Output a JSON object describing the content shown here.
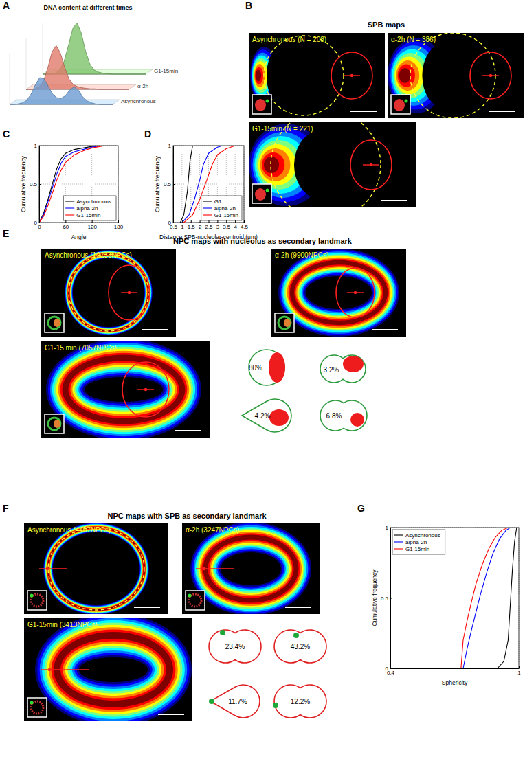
{
  "panel_labels": [
    "A",
    "B",
    "C",
    "D",
    "E",
    "F",
    "G"
  ],
  "chart_data": [
    {
      "type": "area",
      "title": "DNA content at different times",
      "x": [
        0,
        1,
        2,
        3,
        4,
        5,
        6,
        7,
        8,
        9,
        10,
        11,
        12,
        13,
        14,
        15,
        16,
        17,
        18,
        19,
        20,
        21,
        22,
        23,
        24
      ],
      "xlim": [
        0,
        24
      ],
      "ylim": [
        0,
        1
      ],
      "tick_labels": false,
      "series": [
        {
          "name": "G1-15min",
          "color": "#7dc36b",
          "values": [
            0,
            0,
            0,
            0.02,
            0.08,
            0.25,
            0.55,
            0.88,
            1.0,
            0.8,
            0.45,
            0.2,
            0.08,
            0.04,
            0.02,
            0.01,
            0,
            0,
            0,
            0,
            0,
            0,
            0,
            0,
            0
          ]
        },
        {
          "name": "α-2h",
          "color": "#e07a6a",
          "values": [
            0,
            0,
            0.01,
            0.04,
            0.15,
            0.4,
            0.72,
            0.85,
            0.7,
            0.42,
            0.2,
            0.09,
            0.05,
            0.03,
            0.02,
            0.01,
            0.01,
            0,
            0,
            0,
            0,
            0,
            0,
            0,
            0
          ]
        },
        {
          "name": "Asynchronous",
          "color": "#6b9bd1",
          "values": [
            0,
            0,
            0.01,
            0.03,
            0.08,
            0.2,
            0.38,
            0.52,
            0.5,
            0.35,
            0.2,
            0.13,
            0.12,
            0.17,
            0.28,
            0.34,
            0.28,
            0.15,
            0.07,
            0.03,
            0.01,
            0,
            0,
            0,
            0
          ]
        }
      ]
    },
    {
      "type": "line",
      "x_label": "Angle",
      "y_label": "Cumulative frequency",
      "xlim": [
        0,
        180
      ],
      "xticks": [
        0,
        60,
        120,
        180
      ],
      "ylim": [
        0,
        1
      ],
      "yticks": [
        0,
        0.5,
        1
      ],
      "grid": true,
      "legend": "lower-right",
      "series": [
        {
          "name": "Asynchronous",
          "color": "#000000",
          "x": [
            0,
            10,
            20,
            30,
            40,
            50,
            60,
            80,
            100,
            120,
            150
          ],
          "values": [
            0,
            0.12,
            0.3,
            0.5,
            0.7,
            0.83,
            0.9,
            0.95,
            0.97,
            0.99,
            1
          ]
        },
        {
          "name": "alpha-2h",
          "color": "#0000ff",
          "x": [
            0,
            10,
            20,
            30,
            40,
            50,
            60,
            80,
            100,
            120,
            140
          ],
          "values": [
            0,
            0.1,
            0.27,
            0.45,
            0.63,
            0.77,
            0.86,
            0.92,
            0.95,
            0.98,
            1
          ]
        },
        {
          "name": "G1-15min",
          "color": "#ff0000",
          "x": [
            0,
            10,
            20,
            30,
            40,
            50,
            60,
            80,
            100,
            120,
            150
          ],
          "values": [
            0,
            0.08,
            0.22,
            0.38,
            0.55,
            0.68,
            0.78,
            0.88,
            0.93,
            0.97,
            1
          ]
        }
      ]
    },
    {
      "type": "line",
      "x_label": "Distance SPB-nucleolar-centroid (μm)",
      "y_label": "Cumulative frequency",
      "xlim": [
        0.5,
        4.5
      ],
      "xticks": [
        0.5,
        1,
        1.5,
        2,
        2.5,
        3,
        3.5,
        4,
        4.5
      ],
      "ylim": [
        0,
        1
      ],
      "yticks": [
        0,
        0.5,
        1
      ],
      "grid": true,
      "legend": "lower-right",
      "series": [
        {
          "name": "G1",
          "color": "#000000",
          "x": [
            0.9,
            1.1,
            1.3,
            1.45,
            1.6
          ],
          "values": [
            0,
            0.1,
            0.4,
            0.8,
            1
          ]
        },
        {
          "name": "alpha-2h",
          "color": "#0000ff",
          "x": [
            1.0,
            1.4,
            1.7,
            2.0,
            2.2,
            2.5,
            3.0,
            3.3
          ],
          "values": [
            0,
            0.1,
            0.3,
            0.55,
            0.75,
            0.9,
            0.98,
            1
          ]
        },
        {
          "name": "G1-15min",
          "color": "#ff0000",
          "x": [
            1.1,
            1.6,
            2.0,
            2.4,
            2.7,
            3.0,
            3.5,
            4.0
          ],
          "values": [
            0,
            0.1,
            0.3,
            0.55,
            0.75,
            0.88,
            0.96,
            1
          ]
        }
      ]
    },
    {
      "type": "line",
      "x_label": "Sphericity",
      "y_label": "Cumulative frequency",
      "xlim": [
        0.4,
        1
      ],
      "xticks": [
        0.4,
        1
      ],
      "ylim": [
        0,
        1
      ],
      "yticks": [
        0,
        0.5,
        1
      ],
      "grid": true,
      "legend": "upper-left",
      "series": [
        {
          "name": "Asynchronous",
          "color": "#000000",
          "x": [
            0.9,
            0.93,
            0.95,
            0.96,
            0.97,
            0.98,
            0.99
          ],
          "values": [
            0,
            0.05,
            0.2,
            0.45,
            0.7,
            0.9,
            1
          ]
        },
        {
          "name": "alpha-2h",
          "color": "#0000ff",
          "x": [
            0.74,
            0.76,
            0.78,
            0.8,
            0.82,
            0.85,
            0.88,
            0.91,
            0.94,
            0.96
          ],
          "values": [
            0,
            0.15,
            0.28,
            0.4,
            0.52,
            0.68,
            0.82,
            0.92,
            0.98,
            1
          ]
        },
        {
          "name": "G1-15min",
          "color": "#ff0000",
          "x": [
            0.73,
            0.74,
            0.76,
            0.78,
            0.8,
            0.83,
            0.86,
            0.89,
            0.92,
            0.95
          ],
          "values": [
            0,
            0.2,
            0.35,
            0.48,
            0.6,
            0.74,
            0.85,
            0.93,
            0.98,
            1
          ]
        }
      ]
    }
  ],
  "spb_maps": {
    "title": "SPB maps",
    "maps": [
      {
        "label": "Asynchronous (N = 208)"
      },
      {
        "label": "α-2h (N = 386)"
      },
      {
        "label": "G1-15min (N = 221)"
      }
    ]
  },
  "npc_nucleolus": {
    "title": "NPC maps with nucleolus as secondary landmark",
    "maps": [
      {
        "label": "Asynchronous (10233NPCs)"
      },
      {
        "label": "α-2h (9900NPCs)"
      },
      {
        "label": "G1-15 min (7057NPCs)"
      }
    ],
    "shapes": [
      {
        "label": "80%"
      },
      {
        "label": "3.2%"
      },
      {
        "label": "4.2%"
      },
      {
        "label": "6.8%"
      }
    ]
  },
  "npc_spb": {
    "title": "NPC maps with SPB as secondary landmark",
    "maps": [
      {
        "label": "Asynchronous (4407NPCs)"
      },
      {
        "label": "α-2h (3247NPCs)"
      },
      {
        "label": "G1-15min (3413NPCs)"
      }
    ],
    "shapes": [
      {
        "label": "23.4%"
      },
      {
        "label": "43.2%"
      },
      {
        "label": "11.7%"
      },
      {
        "label": "12.2%"
      }
    ]
  }
}
